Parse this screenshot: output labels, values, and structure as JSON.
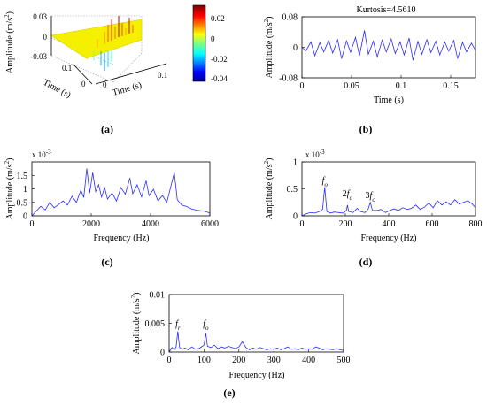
{
  "chart_data": [
    {
      "id": "a",
      "panel_label": "(a)",
      "type": "surface3d",
      "zlabel": "Amplitude (m/s",
      "zlabel_sup": "2",
      "zlabel_close": ")",
      "xlabel": "Time (s)",
      "ylabel": "Time (s)",
      "zlim": [
        -0.03,
        0.03
      ],
      "zticks": [
        "0.03",
        "0",
        "-0.03"
      ],
      "left_time_ticks": [
        "0.1",
        "0"
      ],
      "right_time_ticks": [
        "0",
        "0.1"
      ],
      "colorbar": {
        "ticks": [
          "0.02",
          "0",
          "-0.02",
          "-0.04"
        ],
        "range": [
          -0.045,
          0.03
        ]
      }
    },
    {
      "id": "b",
      "panel_label": "(b)",
      "type": "line",
      "title": "Kurtosis=4.5610",
      "xlabel": "Time (s)",
      "ylabel": "Amplitude (m/s",
      "ylabel_sup": "2",
      "ylabel_close": ")",
      "xlim": [
        0,
        0.175
      ],
      "ylim": [
        -0.08,
        0.08
      ],
      "xticks": [
        0,
        0.05,
        0.1,
        0.15
      ],
      "xtick_labels": [
        "0",
        "0.05",
        "0.1",
        "0.15"
      ],
      "yticks": [
        0.08,
        0,
        -0.08
      ],
      "ytick_labels": [
        "0.08",
        "0",
        "-0.08"
      ],
      "series_color": "#2b2bff",
      "points": [
        [
          0.0,
          0.0
        ],
        [
          0.004,
          -0.009
        ],
        [
          0.009,
          0.014
        ],
        [
          0.013,
          -0.022
        ],
        [
          0.018,
          0.012
        ],
        [
          0.022,
          -0.012
        ],
        [
          0.027,
          0.018
        ],
        [
          0.031,
          -0.015
        ],
        [
          0.036,
          0.02
        ],
        [
          0.04,
          -0.03
        ],
        [
          0.045,
          0.017
        ],
        [
          0.049,
          -0.013
        ],
        [
          0.054,
          0.026
        ],
        [
          0.058,
          -0.022
        ],
        [
          0.063,
          0.044
        ],
        [
          0.067,
          -0.018
        ],
        [
          0.072,
          0.016
        ],
        [
          0.076,
          -0.025
        ],
        [
          0.081,
          0.019
        ],
        [
          0.085,
          -0.012
        ],
        [
          0.09,
          0.022
        ],
        [
          0.094,
          -0.016
        ],
        [
          0.099,
          0.014
        ],
        [
          0.103,
          -0.02
        ],
        [
          0.108,
          0.024
        ],
        [
          0.112,
          -0.034
        ],
        [
          0.117,
          0.015
        ],
        [
          0.121,
          -0.018
        ],
        [
          0.126,
          0.02
        ],
        [
          0.13,
          -0.014
        ],
        [
          0.135,
          0.016
        ],
        [
          0.139,
          -0.02
        ],
        [
          0.144,
          0.014
        ],
        [
          0.148,
          -0.01
        ],
        [
          0.153,
          0.018
        ],
        [
          0.157,
          -0.03
        ],
        [
          0.162,
          0.013
        ],
        [
          0.166,
          -0.012
        ],
        [
          0.171,
          0.011
        ],
        [
          0.175,
          -0.008
        ]
      ]
    },
    {
      "id": "c",
      "panel_label": "(c)",
      "type": "line",
      "exponent_label": "x 10",
      "exponent_sup": "-3",
      "xlabel": "Frequency (Hz)",
      "ylabel": "Amplitude (m/s",
      "ylabel_sup": "2",
      "ylabel_close": ")",
      "xlim": [
        0,
        6000
      ],
      "ylim": [
        0,
        2
      ],
      "xticks": [
        0,
        2000,
        4000,
        6000
      ],
      "xtick_labels": [
        "0",
        "2000",
        "4000",
        "6000"
      ],
      "yticks": [
        0,
        0.5,
        1,
        1.5
      ],
      "ytick_labels": [
        "0",
        "0.5",
        "1",
        "1.5"
      ],
      "series_color": "#2b2bff",
      "points": [
        [
          0,
          0.0
        ],
        [
          150,
          0.18
        ],
        [
          300,
          0.35
        ],
        [
          450,
          0.22
        ],
        [
          600,
          0.5
        ],
        [
          750,
          0.3
        ],
        [
          900,
          0.42
        ],
        [
          1050,
          0.55
        ],
        [
          1200,
          0.4
        ],
        [
          1350,
          0.72
        ],
        [
          1500,
          0.5
        ],
        [
          1650,
          0.95
        ],
        [
          1750,
          0.68
        ],
        [
          1850,
          1.75
        ],
        [
          1950,
          0.85
        ],
        [
          2050,
          1.6
        ],
        [
          2150,
          0.9
        ],
        [
          2250,
          1.15
        ],
        [
          2350,
          0.7
        ],
        [
          2450,
          1.05
        ],
        [
          2550,
          0.62
        ],
        [
          2700,
          0.85
        ],
        [
          2850,
          0.55
        ],
        [
          3000,
          1.05
        ],
        [
          3150,
          0.8
        ],
        [
          3300,
          1.4
        ],
        [
          3400,
          0.82
        ],
        [
          3550,
          1.15
        ],
        [
          3700,
          0.7
        ],
        [
          3850,
          1.3
        ],
        [
          3950,
          0.75
        ],
        [
          4100,
          0.98
        ],
        [
          4250,
          0.55
        ],
        [
          4400,
          0.75
        ],
        [
          4550,
          0.5
        ],
        [
          4700,
          1.15
        ],
        [
          4800,
          1.6
        ],
        [
          4900,
          0.6
        ],
        [
          5050,
          0.4
        ],
        [
          5200,
          0.35
        ],
        [
          5400,
          0.25
        ],
        [
          5600,
          0.2
        ],
        [
          5800,
          0.18
        ],
        [
          6000,
          0.1
        ]
      ]
    },
    {
      "id": "d",
      "panel_label": "(d)",
      "type": "line",
      "exponent_label": "x 10",
      "exponent_sup": "-3",
      "xlabel": "Frequency (Hz)",
      "ylabel": "Amplitude (m/s",
      "ylabel_sup": "2",
      "ylabel_close": ")",
      "xlim": [
        0,
        800
      ],
      "ylim": [
        0,
        1
      ],
      "xticks": [
        0,
        200,
        400,
        600,
        800
      ],
      "xtick_labels": [
        "0",
        "200",
        "400",
        "600",
        "800"
      ],
      "yticks": [
        0,
        0.5,
        1
      ],
      "ytick_labels": [
        "0",
        "0.5",
        "1"
      ],
      "series_color": "#2b2bff",
      "annotations": [
        {
          "prefix": "",
          "text": "f",
          "sub": "o",
          "x": 105,
          "y": 0.61
        },
        {
          "prefix": "2",
          "text": "f",
          "sub": "o",
          "x": 210,
          "y": 0.36
        },
        {
          "prefix": "3",
          "text": "f",
          "sub": "o",
          "x": 315,
          "y": 0.33
        }
      ],
      "points": [
        [
          0,
          0.0
        ],
        [
          20,
          0.04
        ],
        [
          40,
          0.06
        ],
        [
          60,
          0.05
        ],
        [
          80,
          0.08
        ],
        [
          95,
          0.12
        ],
        [
          105,
          0.53
        ],
        [
          115,
          0.08
        ],
        [
          130,
          0.05
        ],
        [
          150,
          0.07
        ],
        [
          170,
          0.06
        ],
        [
          190,
          0.05
        ],
        [
          205,
          0.1
        ],
        [
          210,
          0.2
        ],
        [
          215,
          0.08
        ],
        [
          235,
          0.06
        ],
        [
          255,
          0.14
        ],
        [
          270,
          0.08
        ],
        [
          290,
          0.06
        ],
        [
          305,
          0.12
        ],
        [
          315,
          0.25
        ],
        [
          325,
          0.1
        ],
        [
          345,
          0.1
        ],
        [
          365,
          0.12
        ],
        [
          385,
          0.06
        ],
        [
          405,
          0.1
        ],
        [
          425,
          0.13
        ],
        [
          445,
          0.1
        ],
        [
          465,
          0.15
        ],
        [
          485,
          0.12
        ],
        [
          505,
          0.14
        ],
        [
          525,
          0.2
        ],
        [
          545,
          0.12
        ],
        [
          565,
          0.16
        ],
        [
          585,
          0.24
        ],
        [
          605,
          0.15
        ],
        [
          625,
          0.28
        ],
        [
          645,
          0.2
        ],
        [
          665,
          0.26
        ],
        [
          685,
          0.2
        ],
        [
          705,
          0.3
        ],
        [
          725,
          0.22
        ],
        [
          745,
          0.25
        ],
        [
          765,
          0.28
        ],
        [
          785,
          0.22
        ],
        [
          800,
          0.15
        ]
      ]
    },
    {
      "id": "e",
      "panel_label": "(e)",
      "type": "line",
      "xlabel": "Frequency (Hz)",
      "ylabel": "Amplitude (m/s",
      "ylabel_sup": "2",
      "ylabel_close": ")",
      "xlim": [
        0,
        500
      ],
      "ylim": [
        0,
        0.01
      ],
      "xticks": [
        0,
        100,
        200,
        300,
        400,
        500
      ],
      "xtick_labels": [
        "0",
        "100",
        "200",
        "300",
        "400",
        "500"
      ],
      "yticks": [
        0,
        0.005,
        0.01
      ],
      "ytick_labels": [
        "0",
        "0.005",
        "0.01"
      ],
      "series_color": "#2b2bff",
      "annotations": [
        {
          "prefix": "",
          "text": "f",
          "sub": "r",
          "x": 25,
          "y": 0.0045
        },
        {
          "prefix": "",
          "text": "f",
          "sub": "o",
          "x": 105,
          "y": 0.0045
        }
      ],
      "points": [
        [
          0,
          0.0
        ],
        [
          8,
          0.0008
        ],
        [
          15,
          0.0004
        ],
        [
          20,
          0.0009
        ],
        [
          25,
          0.0036
        ],
        [
          30,
          0.0008
        ],
        [
          38,
          0.0005
        ],
        [
          45,
          0.0007
        ],
        [
          55,
          0.0004
        ],
        [
          65,
          0.0009
        ],
        [
          75,
          0.0005
        ],
        [
          85,
          0.0006
        ],
        [
          95,
          0.001
        ],
        [
          100,
          0.0012
        ],
        [
          105,
          0.0033
        ],
        [
          110,
          0.001
        ],
        [
          120,
          0.0008
        ],
        [
          130,
          0.0012
        ],
        [
          140,
          0.0006
        ],
        [
          150,
          0.0009
        ],
        [
          160,
          0.0007
        ],
        [
          170,
          0.001
        ],
        [
          180,
          0.0008
        ],
        [
          190,
          0.0006
        ],
        [
          200,
          0.0009
        ],
        [
          210,
          0.0018
        ],
        [
          220,
          0.0008
        ],
        [
          230,
          0.0004
        ],
        [
          240,
          0.0007
        ],
        [
          250,
          0.0005
        ],
        [
          260,
          0.0008
        ],
        [
          270,
          0.0006
        ],
        [
          280,
          0.0004
        ],
        [
          290,
          0.0006
        ],
        [
          300,
          0.0005
        ],
        [
          310,
          0.0007
        ],
        [
          320,
          0.0004
        ],
        [
          330,
          0.0006
        ],
        [
          340,
          0.0009
        ],
        [
          350,
          0.0005
        ],
        [
          360,
          0.0006
        ],
        [
          370,
          0.0004
        ],
        [
          380,
          0.0007
        ],
        [
          390,
          0.0005
        ],
        [
          400,
          0.0006
        ],
        [
          410,
          0.0005
        ],
        [
          420,
          0.0009
        ],
        [
          430,
          0.0007
        ],
        [
          440,
          0.0004
        ],
        [
          450,
          0.0006
        ],
        [
          460,
          0.0005
        ],
        [
          470,
          0.0004
        ],
        [
          480,
          0.0006
        ],
        [
          490,
          0.0004
        ],
        [
          500,
          0.0003
        ]
      ]
    }
  ]
}
